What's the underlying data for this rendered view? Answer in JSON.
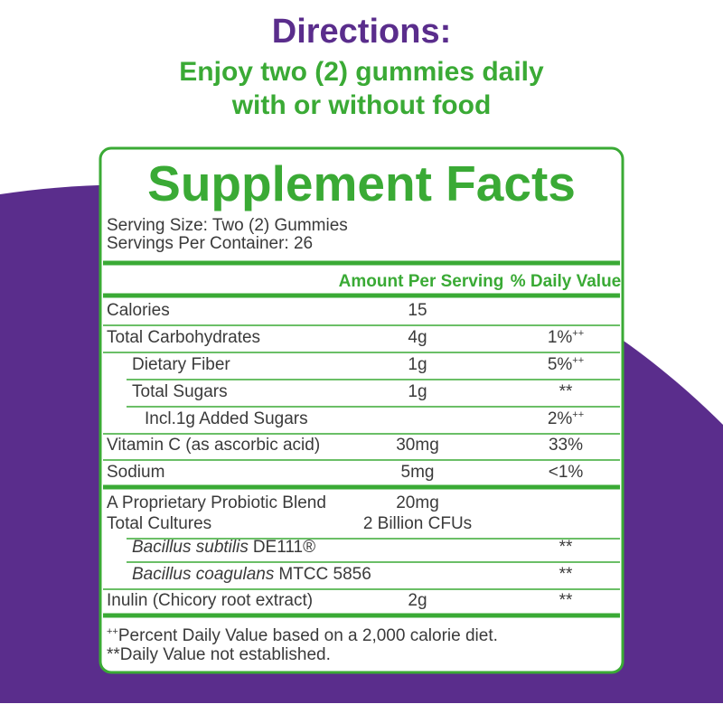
{
  "directions": {
    "title": "Directions:",
    "lines": [
      "Enjoy two (2) gummies daily",
      "with or without food"
    ]
  },
  "label": {
    "title": "Supplement Facts",
    "serving_size": "Serving Size: Two (2) Gummies",
    "servings_per_container": "Servings Per Container: 26",
    "header": {
      "amount": "Amount Per Serving",
      "dv": "% Daily Value"
    },
    "rows": [
      {
        "name": "Calories",
        "amount": "15"
      },
      {
        "name": "Total Carbohydrates",
        "amount": "4g",
        "dv": "1%",
        "dv_mark": "++"
      },
      {
        "name": "Dietary Fiber",
        "amount": "1g",
        "dv": "5%",
        "dv_mark": "++"
      },
      {
        "name": "Total Sugars",
        "amount": "1g",
        "dv": "**"
      },
      {
        "name": "Incl.1g Added Sugars",
        "dv": "2%",
        "dv_mark": "++"
      },
      {
        "name": "Vitamin C (as ascorbic acid)",
        "amount": "30mg",
        "dv": "33%"
      },
      {
        "name": "Sodium",
        "amount": "5mg",
        "dv": "<1%"
      },
      {
        "name": "A Proprietary Probiotic Blend",
        "amount": "20mg"
      },
      {
        "name": "Total Cultures",
        "amount": "2 Billion CFUs"
      },
      {
        "name_italic": "Bacillus subtilis",
        "name_rest": "DE111®",
        "dv": "**"
      },
      {
        "name_italic": "Bacillus coagulans",
        "name_rest": "MTCC 5856",
        "dv": "**"
      },
      {
        "name": "Inulin (Chicory root extract)",
        "amount": "2g",
        "dv": "**"
      }
    ],
    "footnotes": [
      {
        "mark": "++",
        "text": "Percent Daily Value based on a 2,000 calorie diet."
      },
      {
        "mark": "**",
        "text": "Daily Value not established."
      }
    ]
  }
}
